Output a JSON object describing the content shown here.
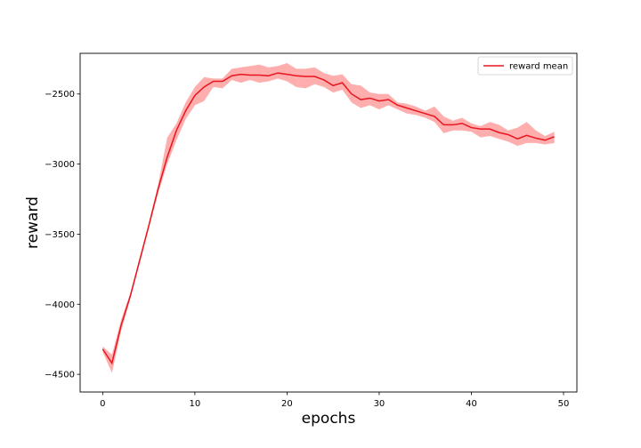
{
  "chart_data": {
    "type": "line",
    "xlabel": "epochs",
    "ylabel": "reward",
    "xlim": [
      -2.45,
      51.45
    ],
    "ylim": [
      -4626,
      -2210
    ],
    "xticks": [
      0,
      10,
      20,
      30,
      40,
      50
    ],
    "yticks": [
      -4500,
      -4000,
      -3500,
      -3000,
      -2500
    ],
    "ytick_labels": [
      "−4500",
      "−4000",
      "−3500",
      "−3000",
      "−2500"
    ],
    "grid": false,
    "legend": {
      "position": "top-right",
      "entries": [
        "reward mean"
      ]
    },
    "colors": {
      "line": "#e8141e",
      "band": "#ff8b8b",
      "frame": "#000000"
    },
    "series": [
      {
        "name": "reward mean",
        "x": [
          0,
          1,
          2,
          3,
          4,
          5,
          6,
          7,
          8,
          9,
          10,
          11,
          12,
          13,
          14,
          15,
          16,
          17,
          18,
          19,
          20,
          21,
          22,
          23,
          24,
          25,
          26,
          27,
          28,
          29,
          30,
          31,
          32,
          33,
          34,
          35,
          36,
          37,
          38,
          39,
          40,
          41,
          42,
          43,
          44,
          45,
          46,
          47,
          48,
          49
        ],
        "values": [
          -4320,
          -4420,
          -4150,
          -3940,
          -3690,
          -3440,
          -3180,
          -2950,
          -2760,
          -2620,
          -2510,
          -2450,
          -2410,
          -2410,
          -2370,
          -2360,
          -2365,
          -2365,
          -2370,
          -2350,
          -2360,
          -2370,
          -2375,
          -2375,
          -2400,
          -2440,
          -2420,
          -2500,
          -2540,
          -2530,
          -2550,
          -2540,
          -2580,
          -2600,
          -2620,
          -2640,
          -2660,
          -2720,
          -2720,
          -2710,
          -2740,
          -2750,
          -2750,
          -2775,
          -2790,
          -2820,
          -2795,
          -2815,
          -2830,
          -2805
        ],
        "band_lower": [
          -4340,
          -4490,
          -4190,
          -3960,
          -3710,
          -3460,
          -3210,
          -3000,
          -2830,
          -2680,
          -2580,
          -2550,
          -2450,
          -2460,
          -2400,
          -2420,
          -2400,
          -2420,
          -2410,
          -2390,
          -2410,
          -2450,
          -2460,
          -2430,
          -2450,
          -2490,
          -2470,
          -2560,
          -2600,
          -2580,
          -2610,
          -2580,
          -2610,
          -2640,
          -2650,
          -2670,
          -2700,
          -2780,
          -2760,
          -2760,
          -2770,
          -2810,
          -2800,
          -2820,
          -2840,
          -2870,
          -2850,
          -2850,
          -2860,
          -2850
        ],
        "band_upper": [
          -4300,
          -4360,
          -4110,
          -3920,
          -3670,
          -3420,
          -3150,
          -2810,
          -2710,
          -2560,
          -2450,
          -2380,
          -2390,
          -2390,
          -2320,
          -2310,
          -2300,
          -2290,
          -2310,
          -2300,
          -2280,
          -2320,
          -2320,
          -2310,
          -2350,
          -2370,
          -2360,
          -2430,
          -2440,
          -2490,
          -2500,
          -2500,
          -2560,
          -2570,
          -2590,
          -2620,
          -2590,
          -2660,
          -2690,
          -2670,
          -2710,
          -2730,
          -2700,
          -2720,
          -2760,
          -2740,
          -2700,
          -2760,
          -2800,
          -2770
        ]
      }
    ]
  }
}
